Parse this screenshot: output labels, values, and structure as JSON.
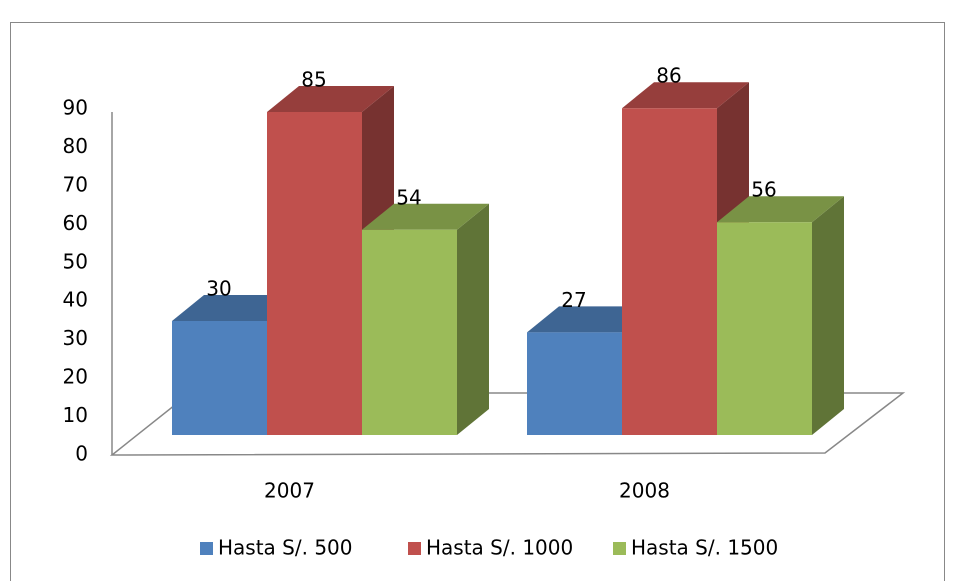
{
  "chart_data": {
    "type": "bar3d",
    "categories": [
      "2007",
      "2008"
    ],
    "series": [
      {
        "name": "Hasta S/. 500",
        "color": "#4f81bd",
        "values": [
          30,
          27
        ]
      },
      {
        "name": "Hasta S/. 1000",
        "color": "#c0504d",
        "values": [
          85,
          86
        ]
      },
      {
        "name": "Hasta S/. 1500",
        "color": "#9bbb59",
        "values": [
          54,
          56
        ]
      }
    ],
    "ylim": [
      0,
      90
    ],
    "yticks": [
      0,
      10,
      20,
      30,
      40,
      50,
      60,
      70,
      80,
      90
    ],
    "grid": false,
    "legend": "bottom"
  }
}
